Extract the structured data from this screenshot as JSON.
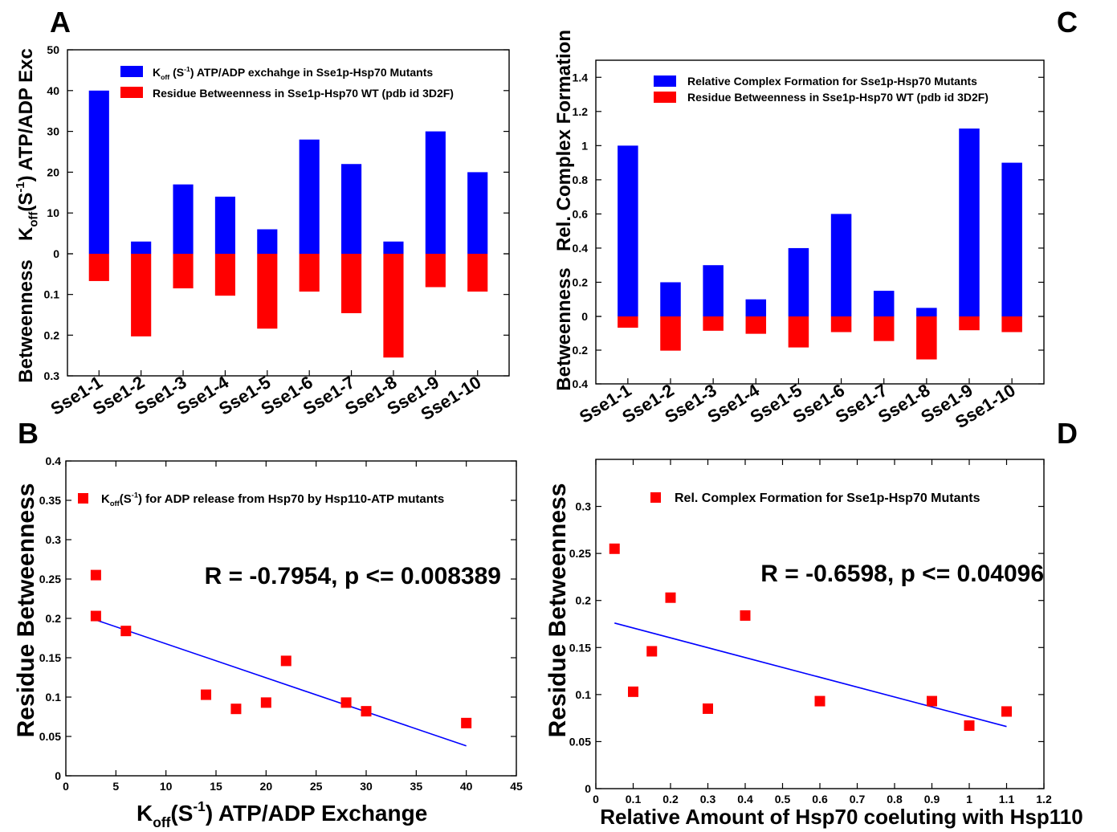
{
  "chart_data": [
    {
      "panel": "A",
      "type": "bar",
      "categories": [
        "Sse1-1",
        "Sse1-2",
        "Sse1-3",
        "Sse1-4",
        "Sse1-5",
        "Sse1-6",
        "Sse1-7",
        "Sse1-8",
        "Sse1-9",
        "Sse1-10"
      ],
      "series": [
        {
          "name": "K<sub>off</sub> (S<sup>-1</sup>) ATP/ADP exchahge  in  Sse1p-Hsp70 Mutants",
          "label_main": "K",
          "label_sub": "off",
          "label_mid": " (S",
          "label_sup": "-1",
          "label_rest": ") ATP/ADP exchahge  in  Sse1p-Hsp70 Mutants",
          "color": "#0000ff",
          "values": [
            40,
            3,
            17,
            14,
            6,
            28,
            22,
            3,
            30,
            20
          ]
        },
        {
          "name": "Residue Betweenness in Sse1p-Hsp70 WT  (pdb id 3D2F)",
          "color": "#ff0000",
          "values": [
            0.067,
            0.203,
            0.085,
            0.103,
            0.184,
            0.093,
            0.146,
            0.255,
            0.082,
            0.093
          ]
        }
      ],
      "upper_ylim": [
        0,
        50
      ],
      "upper_ticks": [
        "0",
        "10",
        "20",
        "30",
        "40",
        "50"
      ],
      "lower_ylim": [
        0,
        0.3
      ],
      "lower_ticks": [
        "0",
        "0.1",
        "0.2",
        "0.3"
      ],
      "ylabel_upper": {
        "main": "K",
        "sub": "off",
        "mid": "(S",
        "sup": "-1",
        "rest": ") ATP/ADP Exc"
      },
      "ylabel_lower": "Betweenness",
      "legend_position": "top-center"
    },
    {
      "panel": "C",
      "type": "bar",
      "categories": [
        "Sse1-1",
        "Sse1-2",
        "Sse1-3",
        "Sse1-4",
        "Sse1-5",
        "Sse1-6",
        "Sse1-7",
        "Sse1-8",
        "Sse1-9",
        "Sse1-10"
      ],
      "series": [
        {
          "name": "Relative Complex Formation for Sse1p-Hsp70 Mutants",
          "color": "#0000ff",
          "values": [
            1.0,
            0.2,
            0.3,
            0.1,
            0.4,
            0.6,
            0.15,
            0.05,
            1.1,
            0.9
          ]
        },
        {
          "name": "Residue Betweenness in Sse1p-Hsp70 WT  (pdb id 3D2F)",
          "color": "#ff0000",
          "values": [
            0.067,
            0.203,
            0.085,
            0.103,
            0.184,
            0.093,
            0.146,
            0.255,
            0.082,
            0.093
          ]
        }
      ],
      "upper_ylim": [
        0,
        1.5
      ],
      "upper_ticks": [
        "0",
        "0.2",
        "0.4",
        "0.6",
        "0.8",
        "1",
        "1.2",
        "1.4"
      ],
      "lower_ylim": [
        0,
        0.4
      ],
      "lower_ticks": [
        "0",
        "0.2",
        "0.4"
      ],
      "ylabel_upper": "Rel. Complex Formation",
      "ylabel_lower": "Betweenness",
      "legend_position": "top-center"
    },
    {
      "panel": "B",
      "type": "scatter",
      "series": [
        {
          "name": "K<sub>off</sub>(S<sup>-1</sup>) for ADP release from Hsp70 by Hsp110-ATP mutants",
          "label_main": "K",
          "label_sub": "off",
          "label_mid": "(S",
          "label_sup": "-1",
          "label_rest": ") for ADP release from Hsp70 by Hsp110-ATP mutants",
          "color": "#ff0000",
          "x": [
            40,
            3,
            17,
            14,
            6,
            28,
            22,
            3,
            30,
            20
          ],
          "y": [
            0.067,
            0.203,
            0.085,
            0.103,
            0.184,
            0.093,
            0.146,
            0.255,
            0.082,
            0.093
          ]
        }
      ],
      "fit_line": {
        "x": [
          3,
          40
        ],
        "y": [
          0.198,
          0.038
        ],
        "color": "#0000ff"
      },
      "annotation": "R = -0.7954, p <= 0.008389",
      "xlim": [
        0,
        45
      ],
      "ylim": [
        0,
        0.4
      ],
      "xticks": [
        "0",
        "5",
        "10",
        "15",
        "20",
        "25",
        "30",
        "35",
        "40",
        "45"
      ],
      "yticks": [
        "0",
        "0.05",
        "0.1",
        "0.15",
        "0.2",
        "0.25",
        "0.3",
        "0.35",
        "0.4"
      ],
      "xlabel": {
        "main": "K",
        "sub": "off",
        "mid": "(S",
        "sup": "-1",
        "rest": ")  ATP/ADP Exchange"
      },
      "ylabel": "Residue Betweenness",
      "legend_position": "top-right"
    },
    {
      "panel": "D",
      "type": "scatter",
      "series": [
        {
          "name": "Rel. Complex Formation for Sse1p-Hsp70 Mutants",
          "color": "#ff0000",
          "x": [
            1.0,
            0.2,
            0.3,
            0.1,
            0.4,
            0.6,
            0.15,
            0.05,
            1.1,
            0.9
          ],
          "y": [
            0.067,
            0.203,
            0.085,
            0.103,
            0.184,
            0.093,
            0.146,
            0.255,
            0.082,
            0.093
          ]
        }
      ],
      "fit_line": {
        "x": [
          0.05,
          1.1
        ],
        "y": [
          0.176,
          0.066
        ],
        "color": "#0000ff"
      },
      "annotation": "R = -0.6598, p <= 0.04096",
      "xlim": [
        0,
        1.2
      ],
      "ylim": [
        0,
        0.35
      ],
      "xticks": [
        "0",
        "0.1",
        "0.2",
        "0.3",
        "0.4",
        "0.5",
        "0.6",
        "0.7",
        "0.8",
        "0.9",
        "1",
        "1.1",
        "1.2"
      ],
      "yticks": [
        "0",
        "0.05",
        "0.1",
        "0.15",
        "0.2",
        "0.25",
        "0.3"
      ],
      "xlabel": "Relative Amount of Hsp70 coeluting with Hsp110",
      "ylabel": "Residue Betweenness",
      "legend_position": "top-right"
    }
  ],
  "panel_letters": [
    "A",
    "B",
    "C",
    "D"
  ]
}
